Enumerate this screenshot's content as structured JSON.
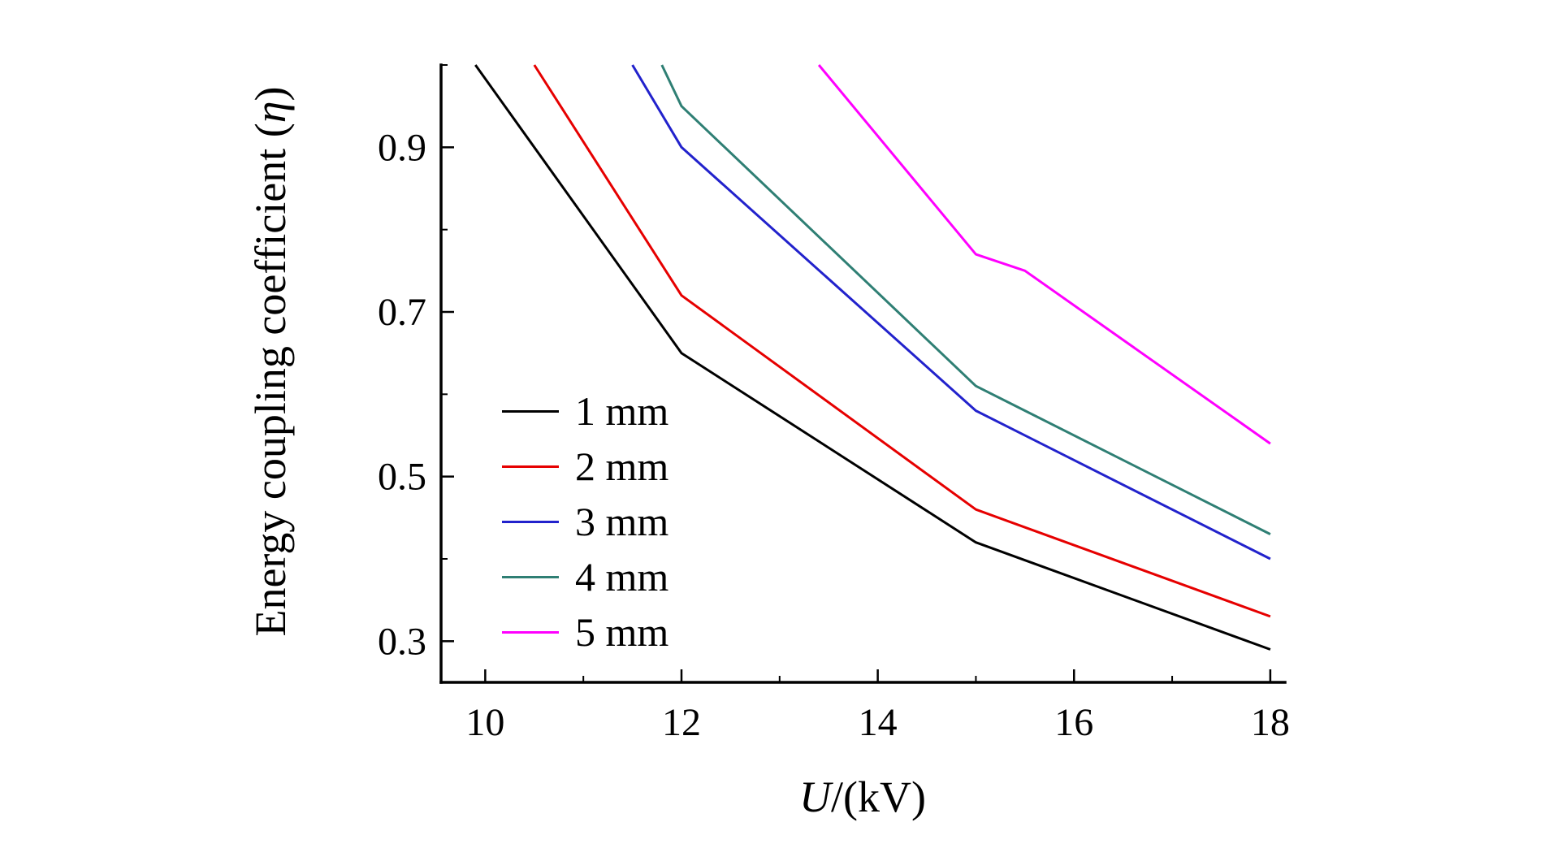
{
  "chart_data": {
    "type": "line",
    "title": "",
    "xlabel": "U/(kV)",
    "xlabel_var": "U",
    "xlabel_rest": "/(kV)",
    "ylabel": "Energy coupling coefficient (η)",
    "ylabel_prefix": "Energy coupling coefficient (",
    "ylabel_symbol": "η",
    "ylabel_suffix": ")",
    "xlim": [
      9.55,
      18.15
    ],
    "ylim": [
      0.25,
      1.0
    ],
    "x_ticks": [
      10,
      12,
      14,
      16,
      18
    ],
    "x_minor_ticks": [
      11,
      13,
      15,
      17
    ],
    "y_ticks": [
      0.3,
      0.5,
      0.7,
      0.9
    ],
    "y_tick_labels": [
      "0.3",
      "0.5",
      "0.7",
      "0.9"
    ],
    "y_minor_ticks": [
      0.4,
      0.6,
      0.8,
      1.0
    ],
    "grid": false,
    "legend_position": "inside-lower-left",
    "axis_color": "#000000",
    "series": [
      {
        "name": "1 mm",
        "color": "#000000",
        "points": [
          [
            9.9,
            1.0
          ],
          [
            12,
            0.65
          ],
          [
            15,
            0.42
          ],
          [
            18,
            0.29
          ]
        ]
      },
      {
        "name": "2 mm",
        "color": "#e60000",
        "points": [
          [
            10.5,
            1.0
          ],
          [
            12,
            0.72
          ],
          [
            15,
            0.46
          ],
          [
            18,
            0.33
          ]
        ]
      },
      {
        "name": "3 mm",
        "color": "#2222cc",
        "points": [
          [
            11.5,
            1.0
          ],
          [
            12,
            0.9
          ],
          [
            15,
            0.58
          ],
          [
            18,
            0.4
          ]
        ]
      },
      {
        "name": "4 mm",
        "color": "#2f7f74",
        "points": [
          [
            11.8,
            1.0
          ],
          [
            12,
            0.95
          ],
          [
            15,
            0.61
          ],
          [
            18,
            0.43
          ]
        ]
      },
      {
        "name": "5 mm",
        "color": "#ff00ff",
        "points": [
          [
            13.4,
            1.0
          ],
          [
            15,
            0.77
          ],
          [
            15.5,
            0.75
          ],
          [
            18,
            0.54
          ]
        ]
      }
    ]
  }
}
